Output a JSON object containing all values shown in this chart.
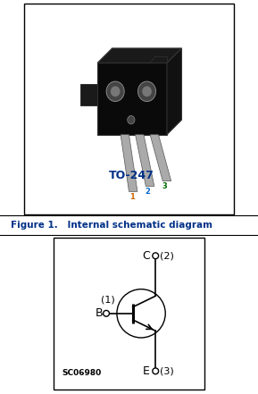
{
  "fig_width": 2.89,
  "fig_height": 4.41,
  "dpi": 100,
  "bg_color": "#ffffff",
  "top_panel": {
    "title": "TO-247",
    "title_color": "#003087",
    "title_fontsize": 9,
    "pin1_label": "1",
    "pin2_label": "2",
    "pin3_label": "3",
    "pin1_color": "#cc6600",
    "pin2_color": "#0066cc",
    "pin3_color": "#006600"
  },
  "separator": {
    "label": "Figure 1.",
    "description": "    Internal schematic diagram",
    "color": "#003087",
    "fontsize": 7.5
  },
  "bottom_panel": {
    "B_label": "B",
    "C_label": "C",
    "E_label": "E",
    "pin1_label": "(1)",
    "pin2_label": "(2)",
    "pin3_label": "(3)",
    "sc_label": "SC06980",
    "sc_fontsize": 6.5
  }
}
